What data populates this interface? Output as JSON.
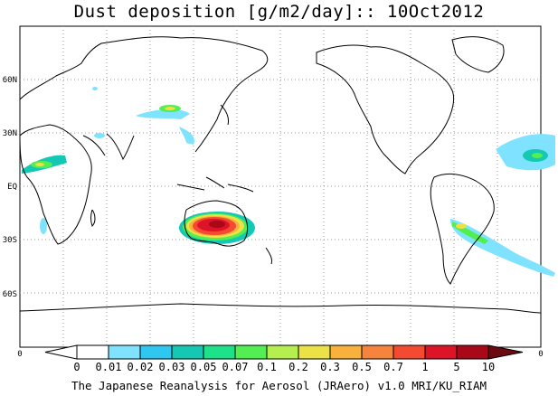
{
  "title": "Dust deposition [g/m2/day]:: 10Oct2012",
  "footer": "The Japanese Reanalysis for Aerosol (JRAero) v1.0 MRI/KU_RIAM",
  "lat_labels": [
    "60N",
    "30N",
    "EQ",
    "30S",
    "60S"
  ],
  "lon_axis_labels": {
    "left": "0",
    "right": "0"
  },
  "colorbar": {
    "levels": [
      "0",
      "0.01",
      "0.02",
      "0.03",
      "0.05",
      "0.07",
      "0.1",
      "0.2",
      "0.3",
      "0.5",
      "0.7",
      "1",
      "5",
      "10"
    ],
    "colors": [
      "#ffffff",
      "#ffffff",
      "#7fe3ff",
      "#2fc6ef",
      "#14c8b4",
      "#1ee28a",
      "#52ee52",
      "#b5ef4f",
      "#ece146",
      "#f7b13c",
      "#f7843c",
      "#f54a32",
      "#dd1428",
      "#a80818",
      "#6b0a10"
    ]
  },
  "map": {
    "projection": "cylindrical equidistant, 0E to 360E, 90S to 90N",
    "grid": "dotted 30 deg",
    "coastline_color": "#000000"
  }
}
